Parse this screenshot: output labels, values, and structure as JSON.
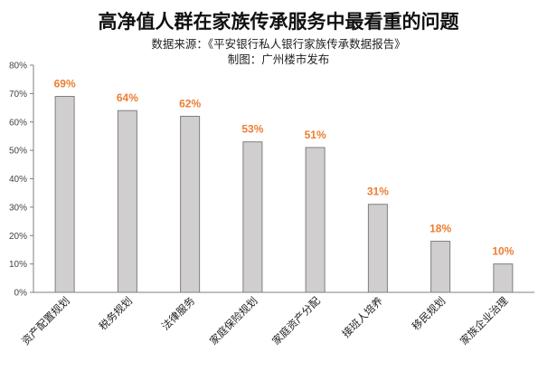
{
  "header": {
    "title": "高净值人群在家族传承服务中最看重的问题",
    "subtitle_source": "数据来源：《平安银行私人银行家族传承数据报告》",
    "subtitle_credit": "制图：广州楼市发布"
  },
  "chart_data": {
    "type": "bar",
    "title": "高净值人群在家族传承服务中最看重的问题",
    "xlabel": "",
    "ylabel": "",
    "categories": [
      "资产配置规划",
      "税务规划",
      "法律服务",
      "家庭保险规划",
      "家庭资产分配",
      "接班人培养",
      "移民规划",
      "家族企业治理"
    ],
    "values": [
      69,
      64,
      62,
      53,
      51,
      31,
      18,
      10
    ],
    "data_labels": [
      "69%",
      "64%",
      "62%",
      "53%",
      "51%",
      "31%",
      "18%",
      "10%"
    ],
    "ylim": [
      0,
      80
    ],
    "yticks": [
      0,
      10,
      20,
      30,
      40,
      50,
      60,
      70,
      80
    ],
    "ytick_labels": [
      "0%",
      "10%",
      "20%",
      "30%",
      "40%",
      "50%",
      "60%",
      "70%",
      "80%"
    ],
    "grid": false,
    "legend": "none",
    "colors": {
      "bar_fill": "#d0cece",
      "bar_stroke": "#7f7f7f",
      "label": "#ed7d31",
      "axis": "#7f7f7f"
    }
  }
}
